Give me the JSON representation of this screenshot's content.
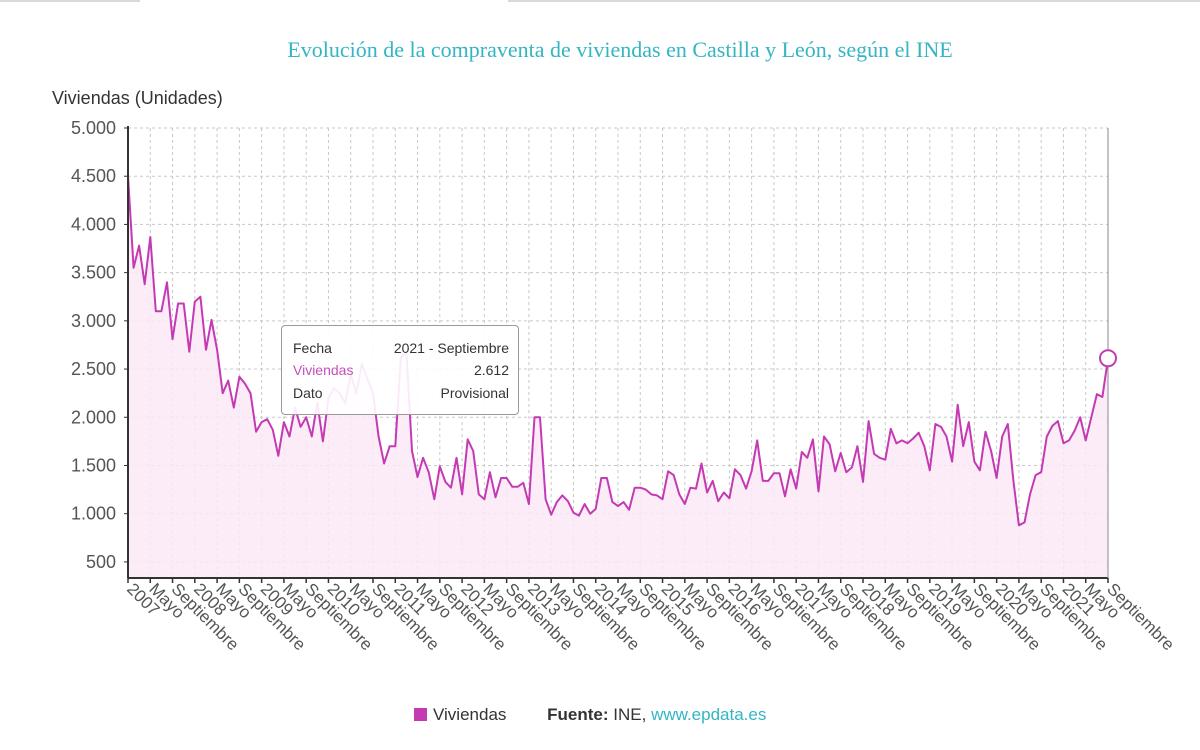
{
  "title": "Evolución de la compraventa de viviendas en Castilla y León, según el INE",
  "colors": {
    "series": "#c43ab3",
    "fill": "#fbe9f7",
    "title": "#33b5c4",
    "link": "#33b5c4"
  },
  "tooltip": {
    "rows": [
      {
        "key": "Fecha",
        "value": "2021 - Septiembre"
      },
      {
        "key": "Viviendas",
        "value": "2.612"
      },
      {
        "key": "Dato",
        "value": "Provisional"
      }
    ]
  },
  "legend": {
    "series_label": "Viviendas",
    "source_label": "Fuente:",
    "source_name": "INE,",
    "source_link": "www.epdata.es"
  },
  "chart_data": {
    "type": "area",
    "title": "Evolución de la compraventa de viviendas en Castilla y León, según el INE",
    "ylabel": "Viviendas (Unidades)",
    "xlabel": "",
    "ylim": [
      333,
      5000
    ],
    "yticks": [
      500,
      1000,
      1500,
      2000,
      2500,
      3000,
      3500,
      4000,
      4500,
      5000
    ],
    "ytick_labels": [
      "500",
      "1.000",
      "1.500",
      "2.000",
      "2.500",
      "3.000",
      "3.500",
      "4.000",
      "4.500",
      "5.000"
    ],
    "grid": true,
    "legend_position": "bottom",
    "x_start": "2007-01",
    "x_end": "2021-09",
    "xtick_labels": [
      {
        "month_index": 0,
        "label": "2007"
      },
      {
        "month_index": 4,
        "label": "Mayo"
      },
      {
        "month_index": 8,
        "label": "Septiembre"
      },
      {
        "month_index": 12,
        "label": "2008"
      },
      {
        "month_index": 16,
        "label": "Mayo"
      },
      {
        "month_index": 20,
        "label": "Septiembre"
      },
      {
        "month_index": 24,
        "label": "2009"
      },
      {
        "month_index": 28,
        "label": "Mayo"
      },
      {
        "month_index": 32,
        "label": "Septiembre"
      },
      {
        "month_index": 36,
        "label": "2010"
      },
      {
        "month_index": 40,
        "label": "Mayo"
      },
      {
        "month_index": 44,
        "label": "Septiembre"
      },
      {
        "month_index": 48,
        "label": "2011"
      },
      {
        "month_index": 52,
        "label": "Mayo"
      },
      {
        "month_index": 56,
        "label": "Septiembre"
      },
      {
        "month_index": 60,
        "label": "2012"
      },
      {
        "month_index": 64,
        "label": "Mayo"
      },
      {
        "month_index": 68,
        "label": "Septiembre"
      },
      {
        "month_index": 72,
        "label": "2013"
      },
      {
        "month_index": 76,
        "label": "Mayo"
      },
      {
        "month_index": 80,
        "label": "Septiembre"
      },
      {
        "month_index": 84,
        "label": "2014"
      },
      {
        "month_index": 88,
        "label": "Mayo"
      },
      {
        "month_index": 92,
        "label": "Septiembre"
      },
      {
        "month_index": 96,
        "label": "2015"
      },
      {
        "month_index": 100,
        "label": "Mayo"
      },
      {
        "month_index": 104,
        "label": "Septiembre"
      },
      {
        "month_index": 108,
        "label": "2016"
      },
      {
        "month_index": 112,
        "label": "Mayo"
      },
      {
        "month_index": 116,
        "label": "Septiembre"
      },
      {
        "month_index": 120,
        "label": "2017"
      },
      {
        "month_index": 124,
        "label": "Mayo"
      },
      {
        "month_index": 128,
        "label": "Septiembre"
      },
      {
        "month_index": 132,
        "label": "2018"
      },
      {
        "month_index": 136,
        "label": "Mayo"
      },
      {
        "month_index": 140,
        "label": "Septiembre"
      },
      {
        "month_index": 144,
        "label": "2019"
      },
      {
        "month_index": 148,
        "label": "Mayo"
      },
      {
        "month_index": 152,
        "label": "Septiembre"
      },
      {
        "month_index": 156,
        "label": "2020"
      },
      {
        "month_index": 160,
        "label": "Mayo"
      },
      {
        "month_index": 164,
        "label": "Septiembre"
      },
      {
        "month_index": 168,
        "label": "2021"
      },
      {
        "month_index": 172,
        "label": "Mayo"
      },
      {
        "month_index": 176,
        "label": "Septiembre"
      }
    ],
    "series": [
      {
        "name": "Viviendas",
        "values": [
          4500,
          3550,
          3780,
          3380,
          3870,
          3100,
          3100,
          3400,
          2810,
          3180,
          3180,
          2680,
          3200,
          3250,
          2700,
          3010,
          2700,
          2250,
          2380,
          2100,
          2420,
          2350,
          2250,
          1850,
          1950,
          1980,
          1870,
          1600,
          1950,
          1800,
          2100,
          1900,
          2000,
          1800,
          2150,
          1750,
          2200,
          2300,
          2250,
          2150,
          2450,
          2250,
          2550,
          2400,
          2250,
          1800,
          1520,
          1700,
          1700,
          2620,
          2680,
          1650,
          1380,
          1580,
          1430,
          1150,
          1490,
          1330,
          1270,
          1580,
          1200,
          1770,
          1650,
          1200,
          1150,
          1430,
          1170,
          1370,
          1370,
          1280,
          1280,
          1320,
          1100,
          2000,
          2000,
          1150,
          990,
          1120,
          1190,
          1130,
          1010,
          980,
          1100,
          1000,
          1050,
          1370,
          1370,
          1120,
          1080,
          1120,
          1040,
          1270,
          1270,
          1250,
          1200,
          1190,
          1150,
          1440,
          1400,
          1200,
          1100,
          1270,
          1260,
          1520,
          1220,
          1340,
          1130,
          1220,
          1160,
          1460,
          1400,
          1260,
          1440,
          1760,
          1340,
          1340,
          1420,
          1420,
          1180,
          1460,
          1260,
          1640,
          1580,
          1770,
          1230,
          1800,
          1720,
          1440,
          1630,
          1430,
          1480,
          1700,
          1330,
          1960,
          1620,
          1580,
          1560,
          1880,
          1730,
          1760,
          1730,
          1780,
          1840,
          1700,
          1450,
          1930,
          1900,
          1800,
          1540,
          2130,
          1700,
          1950,
          1540,
          1450,
          1850,
          1650,
          1370,
          1800,
          1930,
          1350,
          880,
          910,
          1200,
          1400,
          1430,
          1800,
          1910,
          1960,
          1730,
          1760,
          1860,
          2000,
          1760,
          2000,
          2240,
          2210,
          2612
        ]
      }
    ],
    "highlighted_point": {
      "month_index": 176,
      "label": "2021 - Septiembre",
      "value": 2612
    }
  }
}
